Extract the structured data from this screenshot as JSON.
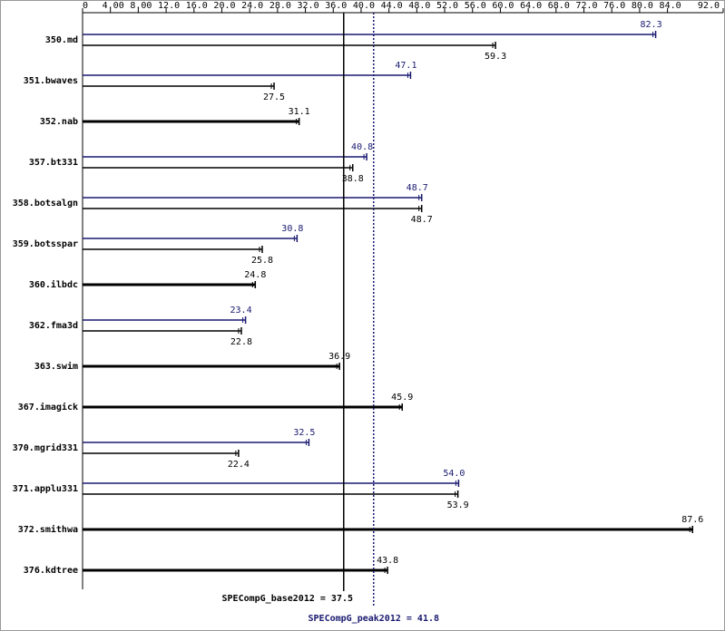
{
  "chart_data": {
    "type": "bar",
    "orientation": "horizontal",
    "categories": [
      "350.md",
      "351.bwaves",
      "352.nab",
      "357.bt331",
      "358.botsalgn",
      "359.botsspar",
      "360.ilbdc",
      "362.fma3d",
      "363.swim",
      "367.imagick",
      "370.mgrid331",
      "371.applu331",
      "372.smithwa",
      "376.kdtree"
    ],
    "series": [
      {
        "name": "base",
        "color": "#000000",
        "values": [
          59.3,
          27.5,
          31.1,
          38.8,
          48.7,
          25.8,
          24.8,
          22.8,
          36.9,
          45.9,
          22.4,
          53.9,
          87.6,
          43.8
        ]
      },
      {
        "name": "peak",
        "color": "#191970",
        "values": [
          82.3,
          47.1,
          null,
          40.8,
          48.7,
          30.8,
          null,
          23.4,
          null,
          null,
          32.5,
          54.0,
          null,
          null
        ],
        "value_labels": [
          null,
          null,
          null,
          null,
          null,
          null,
          null,
          null,
          null,
          null,
          null,
          "54.0",
          null,
          null
        ]
      }
    ],
    "xlim": [
      0,
      92
    ],
    "xticks": [
      {
        "value": 0,
        "label": "0"
      },
      {
        "value": 4,
        "label": "4.00"
      },
      {
        "value": 8,
        "label": "8.00"
      },
      {
        "value": 12,
        "label": "12.0"
      },
      {
        "value": 16,
        "label": "16.0"
      },
      {
        "value": 20,
        "label": "20.0"
      },
      {
        "value": 24,
        "label": "24.0"
      },
      {
        "value": 28,
        "label": "28.0"
      },
      {
        "value": 32,
        "label": "32.0"
      },
      {
        "value": 36,
        "label": "36.0"
      },
      {
        "value": 40,
        "label": "40.0"
      },
      {
        "value": 44,
        "label": "44.0"
      },
      {
        "value": 48,
        "label": "48.0"
      },
      {
        "value": 52,
        "label": "52.0"
      },
      {
        "value": 56,
        "label": "56.0"
      },
      {
        "value": 60,
        "label": "60.0"
      },
      {
        "value": 64,
        "label": "64.0"
      },
      {
        "value": 68,
        "label": "68.0"
      },
      {
        "value": 72,
        "label": "72.0"
      },
      {
        "value": 76,
        "label": "76.0"
      },
      {
        "value": 80,
        "label": "80.0"
      },
      {
        "value": 84,
        "label": "84.0"
      },
      {
        "value": 92,
        "label": "92.0"
      }
    ],
    "base_mean": 37.5,
    "peak_mean": 41.8,
    "base_mean_label": "SPECompG_base2012 = 37.5",
    "peak_mean_label": "SPECompG_peak2012 = 41.8"
  }
}
